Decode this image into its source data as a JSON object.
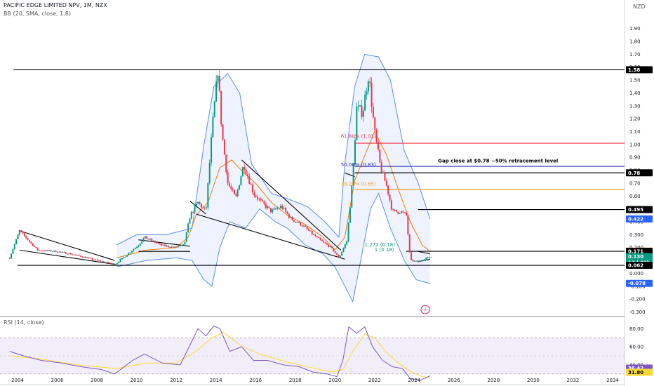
{
  "header": {
    "symbol": "PACIFIC EDGE LIMITED NPV, 1M, NZX",
    "indicator": "BB (20, SMA, close, 1.8)",
    "rsi": "RSI (14, close)",
    "currency": "NZD"
  },
  "chart_data": [
    {
      "type": "candlestick",
      "title": "PACIFIC EDGE LIMITED NPV, 1M, NZX",
      "currency": "NZD",
      "x_ticks": [
        "2004",
        "2006",
        "2008",
        "2010",
        "2012",
        "2014",
        "2016",
        "2018",
        "2020",
        "2022",
        "2024",
        "2026",
        "2028",
        "2030",
        "2032",
        "2034"
      ],
      "y_ticks": [
        "1.90",
        "1.80",
        "1.70",
        "1.60",
        "1.50",
        "1.40",
        "1.30",
        "1.20",
        "1.10",
        "1.00",
        "0.90",
        "0.80",
        "0.70",
        "0.60",
        "0.500",
        "0.400",
        "0.300",
        "0.200",
        "0.100",
        "0.000",
        "-0.100",
        "-0.200",
        "-0.300"
      ],
      "ylim": [
        -0.33,
        1.98
      ],
      "price_path": [
        [
          2003.6,
          0.12
        ],
        [
          2004.1,
          0.33
        ],
        [
          2005.0,
          0.18
        ],
        [
          2006.0,
          0.17
        ],
        [
          2007.0,
          0.14
        ],
        [
          2008.0,
          0.1
        ],
        [
          2008.9,
          0.07
        ],
        [
          2009.4,
          0.13
        ],
        [
          2010.1,
          0.22
        ],
        [
          2010.4,
          0.28
        ],
        [
          2011.2,
          0.22
        ],
        [
          2011.9,
          0.2
        ],
        [
          2012.4,
          0.22
        ],
        [
          2012.7,
          0.45
        ],
        [
          2013.1,
          0.55
        ],
        [
          2013.5,
          0.48
        ],
        [
          2013.8,
          1.1
        ],
        [
          2014.1,
          1.58
        ],
        [
          2014.3,
          1.1
        ],
        [
          2014.6,
          0.7
        ],
        [
          2015.0,
          0.58
        ],
        [
          2015.4,
          0.85
        ],
        [
          2015.9,
          0.62
        ],
        [
          2016.3,
          0.55
        ],
        [
          2016.8,
          0.48
        ],
        [
          2017.3,
          0.52
        ],
        [
          2017.8,
          0.42
        ],
        [
          2018.3,
          0.38
        ],
        [
          2018.9,
          0.3
        ],
        [
          2019.4,
          0.24
        ],
        [
          2019.8,
          0.2
        ],
        [
          2020.2,
          0.12
        ],
        [
          2020.6,
          0.25
        ],
        [
          2020.9,
          0.75
        ],
        [
          2021.1,
          1.28
        ],
        [
          2021.4,
          1.25
        ],
        [
          2021.7,
          1.55
        ],
        [
          2022.0,
          1.1
        ],
        [
          2022.3,
          0.82
        ],
        [
          2022.6,
          0.68
        ],
        [
          2022.9,
          0.48
        ],
        [
          2023.3,
          0.48
        ],
        [
          2023.6,
          0.45
        ],
        [
          2023.8,
          0.1
        ],
        [
          2024.2,
          0.09
        ],
        [
          2024.6,
          0.12
        ],
        [
          2024.9,
          0.13
        ]
      ],
      "bollinger_bands": {
        "upper": [
          [
            2009.0,
            0.22
          ],
          [
            2010.0,
            0.3
          ],
          [
            2011.5,
            0.3
          ],
          [
            2012.8,
            0.35
          ],
          [
            2013.4,
            1.0
          ],
          [
            2013.9,
            1.45
          ],
          [
            2014.6,
            1.55
          ],
          [
            2015.2,
            1.4
          ],
          [
            2015.8,
            0.85
          ],
          [
            2016.8,
            0.62
          ],
          [
            2017.6,
            0.58
          ],
          [
            2018.6,
            0.52
          ],
          [
            2019.5,
            0.4
          ],
          [
            2020.2,
            0.28
          ],
          [
            2020.5,
            0.85
          ],
          [
            2021.0,
            1.45
          ],
          [
            2021.5,
            1.7
          ],
          [
            2022.2,
            1.68
          ],
          [
            2022.8,
            1.5
          ],
          [
            2023.5,
            0.95
          ],
          [
            2024.2,
            0.7
          ],
          [
            2024.8,
            0.42
          ]
        ],
        "lower": [
          [
            2009.0,
            0.05
          ],
          [
            2010.5,
            0.1
          ],
          [
            2012.0,
            0.12
          ],
          [
            2012.8,
            0.1
          ],
          [
            2013.4,
            -0.05
          ],
          [
            2013.8,
            -0.1
          ],
          [
            2014.2,
            0.2
          ],
          [
            2014.7,
            0.4
          ],
          [
            2015.5,
            0.35
          ],
          [
            2016.2,
            0.5
          ],
          [
            2017.0,
            0.4
          ],
          [
            2017.6,
            0.35
          ],
          [
            2018.5,
            0.22
          ],
          [
            2019.4,
            0.15
          ],
          [
            2020.0,
            0.05
          ],
          [
            2020.5,
            -0.1
          ],
          [
            2020.9,
            -0.22
          ],
          [
            2021.3,
            0.1
          ],
          [
            2021.8,
            0.5
          ],
          [
            2022.2,
            0.62
          ],
          [
            2022.8,
            0.35
          ],
          [
            2023.5,
            0.1
          ],
          [
            2024.1,
            -0.05
          ],
          [
            2024.8,
            -0.08
          ]
        ],
        "basis": [
          [
            2009.0,
            0.12
          ],
          [
            2010.5,
            0.18
          ],
          [
            2012.0,
            0.2
          ],
          [
            2012.6,
            0.28
          ],
          [
            2013.0,
            0.45
          ],
          [
            2013.6,
            0.55
          ],
          [
            2014.2,
            0.82
          ],
          [
            2014.8,
            0.88
          ],
          [
            2015.4,
            0.78
          ],
          [
            2016.0,
            0.7
          ],
          [
            2016.8,
            0.55
          ],
          [
            2017.6,
            0.45
          ],
          [
            2018.5,
            0.38
          ],
          [
            2019.4,
            0.28
          ],
          [
            2020.0,
            0.18
          ],
          [
            2020.5,
            0.28
          ],
          [
            2021.0,
            0.72
          ],
          [
            2021.6,
            0.95
          ],
          [
            2022.0,
            1.1
          ],
          [
            2022.6,
            0.92
          ],
          [
            2023.2,
            0.65
          ],
          [
            2023.8,
            0.4
          ],
          [
            2024.4,
            0.22
          ],
          [
            2024.8,
            0.17
          ]
        ]
      },
      "horizontal_levels": [
        {
          "value": 1.58,
          "label": "1.58",
          "color": "#000000"
        },
        {
          "value": 1.01,
          "label": "61.80% (1.01)",
          "color": "#f23645"
        },
        {
          "value": 0.83,
          "label": "50.00% (0.83)",
          "color": "#2a2ea6"
        },
        {
          "value": 0.78,
          "label": "0.78",
          "color": "#000000"
        },
        {
          "value": 0.65,
          "label": "38.20% (0.65)",
          "color": "#f7a21b"
        },
        {
          "value": 0.495,
          "label": "0.495",
          "color": "#000000"
        },
        {
          "value": 0.171,
          "label": "0.171",
          "color": "#000000"
        },
        {
          "value": 0.062,
          "label": "0.062",
          "color": "#000000"
        }
      ],
      "price_tags": [
        {
          "value": 1.58,
          "label": "1.58",
          "bg": "#000000"
        },
        {
          "value": 0.78,
          "label": "0.78",
          "bg": "#000000"
        },
        {
          "value": 0.495,
          "label": "0.495",
          "bg": "#000000"
        },
        {
          "value": 0.422,
          "label": "0.422",
          "bg": "#2962ff"
        },
        {
          "value": 0.172,
          "label": "0.172",
          "bg": "#f57c00"
        },
        {
          "value": 0.171,
          "label": "0.171",
          "bg": "#000000"
        },
        {
          "value": 0.13,
          "label": "0.130",
          "sub": "13d 23h",
          "bg": "#089981"
        },
        {
          "value": 0.062,
          "label": "0.062",
          "bg": "#000000"
        },
        {
          "value": -0.078,
          "label": "-0.078",
          "bg": "#2962ff"
        }
      ],
      "annotations": [
        {
          "text": "Gap close at $0.78 ~50% retracement level",
          "x": 2025.2,
          "y": 0.86,
          "color": "#000000"
        },
        {
          "text": "61.80% (1.01)",
          "x": 2020.3,
          "y": 1.05,
          "color": "#f23645"
        },
        {
          "text": "50.00% (0.83)",
          "x": 2020.3,
          "y": 0.83,
          "color": "#2a2ea6"
        },
        {
          "text": "38.20% (0.65)",
          "x": 2020.3,
          "y": 0.68,
          "color": "#f7a21b"
        },
        {
          "text": "1.272 (0.18)",
          "x": 2021.5,
          "y": 0.21,
          "color": "#089981"
        },
        {
          "text": "1 (0.18)",
          "x": 2022.0,
          "y": 0.17,
          "color": "#089981"
        }
      ]
    },
    {
      "type": "line",
      "title": "RSI (14, close)",
      "y_ticks": [
        "80.00",
        "60.00",
        "40.00"
      ],
      "ylim": [
        19,
        88
      ],
      "band": [
        30,
        70
      ],
      "rsi": [
        [
          2003.6,
          55
        ],
        [
          2004.3,
          50
        ],
        [
          2005.2,
          45
        ],
        [
          2006.2,
          42
        ],
        [
          2007.2,
          38
        ],
        [
          2008.2,
          35
        ],
        [
          2008.9,
          30
        ],
        [
          2009.8,
          45
        ],
        [
          2010.4,
          52
        ],
        [
          2011.3,
          42
        ],
        [
          2012.2,
          40
        ],
        [
          2012.7,
          62
        ],
        [
          2013.1,
          80
        ],
        [
          2013.5,
          72
        ],
        [
          2013.9,
          83
        ],
        [
          2014.2,
          80
        ],
        [
          2014.7,
          55
        ],
        [
          2015.3,
          60
        ],
        [
          2015.9,
          45
        ],
        [
          2016.6,
          45
        ],
        [
          2017.4,
          40
        ],
        [
          2018.2,
          38
        ],
        [
          2018.9,
          32
        ],
        [
          2019.6,
          30
        ],
        [
          2020.1,
          27
        ],
        [
          2020.4,
          45
        ],
        [
          2020.7,
          82
        ],
        [
          2021.1,
          75
        ],
        [
          2021.5,
          82
        ],
        [
          2021.9,
          60
        ],
        [
          2022.4,
          45
        ],
        [
          2022.9,
          38
        ],
        [
          2023.4,
          36
        ],
        [
          2023.8,
          25
        ],
        [
          2024.3,
          23
        ],
        [
          2024.8,
          28
        ]
      ],
      "rsi_ma": [
        [
          2003.6,
          50
        ],
        [
          2005.0,
          47
        ],
        [
          2007.0,
          40
        ],
        [
          2009.0,
          36
        ],
        [
          2010.5,
          42
        ],
        [
          2012.0,
          42
        ],
        [
          2013.0,
          55
        ],
        [
          2013.8,
          70
        ],
        [
          2014.4,
          76
        ],
        [
          2015.2,
          62
        ],
        [
          2016.2,
          52
        ],
        [
          2017.6,
          43
        ],
        [
          2018.8,
          37
        ],
        [
          2019.8,
          32
        ],
        [
          2020.4,
          35
        ],
        [
          2020.9,
          55
        ],
        [
          2021.5,
          74
        ],
        [
          2022.0,
          70
        ],
        [
          2022.6,
          54
        ],
        [
          2023.2,
          42
        ],
        [
          2023.8,
          33
        ],
        [
          2024.4,
          27
        ],
        [
          2024.8,
          26
        ]
      ],
      "price_tags": [
        {
          "value": 36.42,
          "label": "36.42",
          "bg": "#7e57c2"
        },
        {
          "value": 31.8,
          "label": "31.80",
          "bg": "#fdd835"
        }
      ]
    }
  ]
}
